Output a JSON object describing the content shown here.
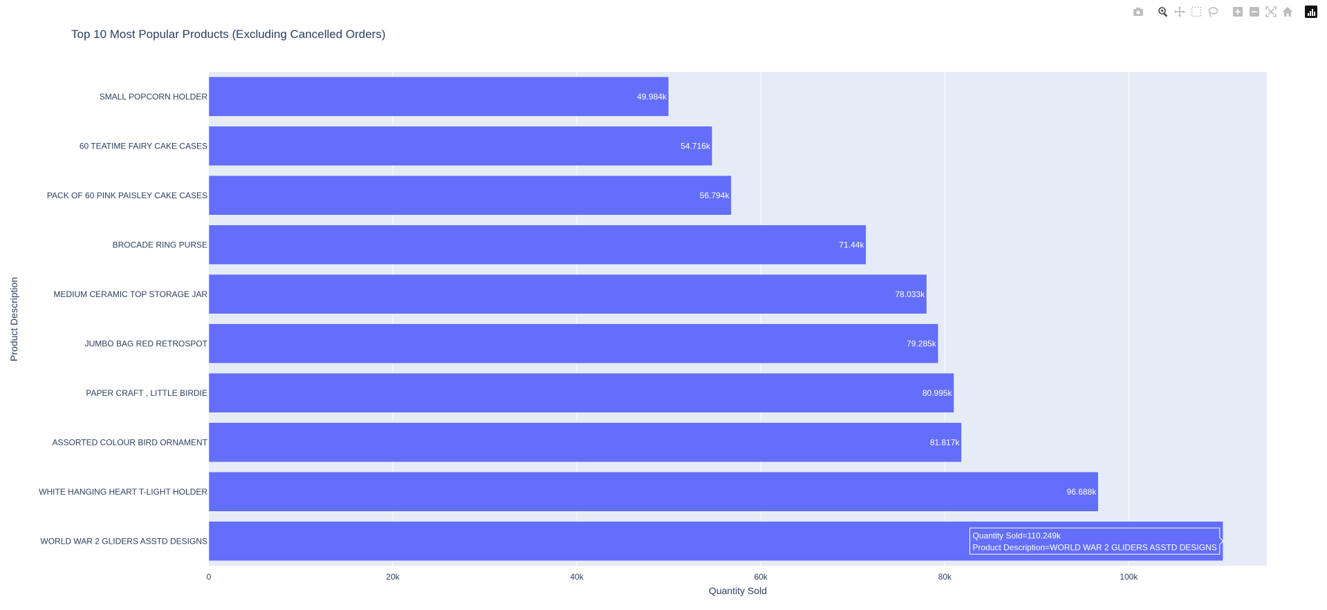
{
  "chart_data": {
    "type": "bar",
    "orientation": "horizontal",
    "title": "Top 10 Most Popular Products (Excluding Cancelled Orders)",
    "xlabel": "Quantity Sold",
    "ylabel": "Product Description",
    "xlim": [
      0,
      115000
    ],
    "xticks": [
      0,
      20000,
      40000,
      60000,
      80000,
      100000
    ],
    "xtick_labels": [
      "0",
      "20k",
      "40k",
      "60k",
      "80k",
      "100k"
    ],
    "grid": true,
    "bar_color": "#636efa",
    "plot_bg": "#e5ecf6",
    "categories": [
      "SMALL POPCORN HOLDER",
      "60 TEATIME FAIRY CAKE CASES",
      "PACK OF 60 PINK PAISLEY CAKE CASES",
      "BROCADE RING PURSE",
      "MEDIUM CERAMIC TOP STORAGE JAR",
      "JUMBO BAG RED RETROSPOT",
      "PAPER CRAFT , LITTLE BIRDIE",
      "ASSORTED COLOUR BIRD ORNAMENT",
      "WHITE HANGING HEART T-LIGHT HOLDER",
      "WORLD WAR 2 GLIDERS ASSTD DESIGNS"
    ],
    "values": [
      49984,
      54716,
      56794,
      71440,
      78033,
      79285,
      80995,
      81817,
      96688,
      110249
    ],
    "value_labels": [
      "49.984k",
      "54.716k",
      "56.794k",
      "71.44k",
      "78.033k",
      "79.285k",
      "80.995k",
      "81.817k",
      "96.688k",
      ""
    ],
    "hover": {
      "category_index": 9,
      "line1": "Quantity Sold=110.249k",
      "line2": "Product Description=WORLD WAR 2 GLIDERS ASSTD DESIGNS"
    }
  },
  "modebar": {
    "buttons": [
      "camera-icon",
      "zoom-icon",
      "pan-icon",
      "box-select-icon",
      "lasso-icon",
      "zoom-in-icon",
      "zoom-out-icon",
      "autoscale-icon",
      "reset-axes-icon"
    ],
    "active": "zoom-icon"
  }
}
